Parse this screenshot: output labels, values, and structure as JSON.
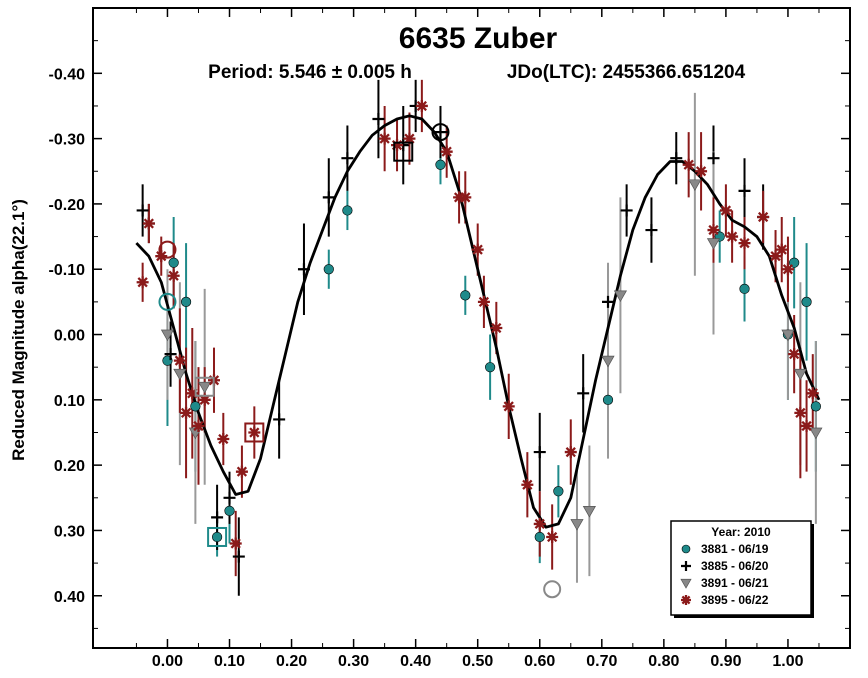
{
  "chart_data": {
    "type": "scatter",
    "title": "6635 Zuber",
    "subtitle_period": "Period: 5.546 ± 0.005 h",
    "subtitle_epoch": "JDo(LTC): 2455366.651204",
    "xlabel": "",
    "ylabel": "Reduced Magnitude alpha(22.1°)",
    "xlim": [
      -0.12,
      1.1
    ],
    "ylim": [
      0.48,
      -0.5
    ],
    "y_inverted": true,
    "x_ticks": [
      "0.00",
      "0.10",
      "0.20",
      "0.30",
      "0.40",
      "0.50",
      "0.60",
      "0.70",
      "0.80",
      "0.90",
      "1.00"
    ],
    "y_ticks": [
      "-0.40",
      "-0.30",
      "-0.20",
      "-0.10",
      "0.00",
      "0.10",
      "0.20",
      "0.30",
      "0.40"
    ],
    "grid": false,
    "legend_title": "Year: 2010",
    "legend_position": "bottom-right",
    "series": [
      {
        "name": "3881 - 06/19",
        "marker": "circle",
        "color": "#1f8a8a",
        "points": [
          [
            0.0,
            0.04,
            0.1
          ],
          [
            0.01,
            -0.11,
            0.07
          ],
          [
            0.03,
            -0.05,
            0.09
          ],
          [
            0.045,
            0.11,
            0.1
          ],
          [
            0.08,
            0.31,
            0.03
          ],
          [
            0.1,
            0.27,
            0.05
          ],
          [
            0.26,
            -0.1,
            0.03
          ],
          [
            0.29,
            -0.19,
            0.03
          ],
          [
            0.44,
            -0.26,
            0.03
          ],
          [
            0.48,
            -0.06,
            0.03
          ],
          [
            0.52,
            0.05,
            0.05
          ],
          [
            0.6,
            0.31,
            0.04
          ],
          [
            0.63,
            0.24,
            0.04
          ],
          [
            0.71,
            0.1,
            0.03
          ],
          [
            0.89,
            -0.15,
            0.04
          ],
          [
            0.93,
            -0.07,
            0.05
          ],
          [
            1.0,
            0.0,
            0.1
          ],
          [
            1.01,
            -0.11,
            0.07
          ],
          [
            1.03,
            -0.05,
            0.09
          ],
          [
            1.045,
            0.11,
            0.1
          ]
        ]
      },
      {
        "name": "3885 - 06/20",
        "marker": "cross",
        "color": "#000000",
        "points": [
          [
            -0.04,
            -0.19,
            0.04
          ],
          [
            -0.03,
            -0.17,
            0.03
          ],
          [
            0.005,
            0.03,
            0.05
          ],
          [
            0.08,
            0.28,
            0.05
          ],
          [
            0.1,
            0.25,
            0.04
          ],
          [
            0.115,
            0.34,
            0.06
          ],
          [
            0.18,
            0.13,
            0.06
          ],
          [
            0.22,
            -0.1,
            0.07
          ],
          [
            0.26,
            -0.21,
            0.06
          ],
          [
            0.29,
            -0.27,
            0.05
          ],
          [
            0.34,
            -0.33,
            0.06
          ],
          [
            0.38,
            -0.29,
            0.06
          ],
          [
            0.4,
            -0.35,
            0.04
          ],
          [
            0.44,
            -0.31,
            0.04
          ],
          [
            0.6,
            0.18,
            0.06
          ],
          [
            0.67,
            0.09,
            0.06
          ],
          [
            0.71,
            -0.05,
            0.05
          ],
          [
            0.74,
            -0.19,
            0.04
          ],
          [
            0.78,
            -0.16,
            0.05
          ],
          [
            0.82,
            -0.27,
            0.04
          ],
          [
            0.88,
            -0.27,
            0.05
          ],
          [
            0.93,
            -0.22,
            0.05
          ],
          [
            0.96,
            -0.18,
            0.05
          ]
        ]
      },
      {
        "name": "3891 - 06/21",
        "marker": "triangle",
        "color": "#888888",
        "points": [
          [
            0.0,
            0.0,
            0.1
          ],
          [
            0.02,
            0.06,
            0.14
          ],
          [
            0.045,
            0.15,
            0.14
          ],
          [
            0.06,
            0.08,
            0.15
          ],
          [
            0.66,
            0.29,
            0.09
          ],
          [
            0.68,
            0.27,
            0.1
          ],
          [
            0.71,
            0.04,
            0.15
          ],
          [
            0.73,
            -0.06,
            0.15
          ],
          [
            0.85,
            -0.23,
            0.14
          ],
          [
            0.88,
            -0.14,
            0.14
          ],
          [
            1.0,
            0.0,
            0.1
          ],
          [
            1.02,
            0.06,
            0.14
          ],
          [
            1.045,
            0.15,
            0.14
          ]
        ]
      },
      {
        "name": "3895 - 06/22",
        "marker": "star",
        "color": "#8b1a1a",
        "points": [
          [
            -0.04,
            -0.08,
            0.03
          ],
          [
            -0.03,
            -0.17,
            0.03
          ],
          [
            -0.01,
            -0.12,
            0.03
          ],
          [
            0.01,
            -0.09,
            0.05
          ],
          [
            0.02,
            0.04,
            0.08
          ],
          [
            0.03,
            0.12,
            0.1
          ],
          [
            0.04,
            0.09,
            0.1
          ],
          [
            0.05,
            0.14,
            0.09
          ],
          [
            0.06,
            0.1,
            0.05
          ],
          [
            0.075,
            0.07,
            0.05
          ],
          [
            0.09,
            0.16,
            0.04
          ],
          [
            0.11,
            0.32,
            0.05
          ],
          [
            0.12,
            0.21,
            0.04
          ],
          [
            0.14,
            0.15,
            0.04
          ],
          [
            0.35,
            -0.3,
            0.05
          ],
          [
            0.37,
            -0.29,
            0.04
          ],
          [
            0.39,
            -0.3,
            0.04
          ],
          [
            0.41,
            -0.35,
            0.04
          ],
          [
            0.45,
            -0.28,
            0.04
          ],
          [
            0.47,
            -0.21,
            0.04
          ],
          [
            0.48,
            -0.21,
            0.04
          ],
          [
            0.5,
            -0.13,
            0.04
          ],
          [
            0.51,
            -0.05,
            0.04
          ],
          [
            0.53,
            -0.01,
            0.04
          ],
          [
            0.55,
            0.11,
            0.05
          ],
          [
            0.58,
            0.23,
            0.05
          ],
          [
            0.6,
            0.29,
            0.05
          ],
          [
            0.62,
            0.31,
            0.05
          ],
          [
            0.65,
            0.18,
            0.05
          ],
          [
            0.84,
            -0.26,
            0.05
          ],
          [
            0.86,
            -0.25,
            0.06
          ],
          [
            0.88,
            -0.16,
            0.05
          ],
          [
            0.9,
            -0.19,
            0.04
          ],
          [
            0.91,
            -0.15,
            0.04
          ],
          [
            0.93,
            -0.14,
            0.04
          ],
          [
            0.96,
            -0.18,
            0.04
          ],
          [
            0.98,
            -0.12,
            0.04
          ],
          [
            0.99,
            -0.13,
            0.05
          ],
          [
            1.0,
            -0.1,
            0.05
          ],
          [
            1.01,
            0.03,
            0.06
          ],
          [
            1.02,
            0.12,
            0.1
          ],
          [
            1.03,
            0.14,
            0.07
          ],
          [
            1.04,
            0.09,
            0.06
          ]
        ]
      }
    ],
    "highlighted": [
      {
        "series": "3881 - 06/19",
        "marker": "circle",
        "x": 0.0,
        "y": -0.05
      },
      {
        "series": "3881 - 06/19",
        "marker": "square",
        "x": 0.08,
        "y": 0.31
      },
      {
        "series": "3885 - 06/20",
        "marker": "cross-circle",
        "x": 0.44,
        "y": -0.31
      },
      {
        "series": "3885 - 06/20",
        "marker": "square",
        "x": 0.38,
        "y": -0.28
      },
      {
        "series": "3891 - 06/21",
        "marker": "square",
        "x": 0.06,
        "y": 0.08
      },
      {
        "series": "3891 - 06/21",
        "marker": "circle",
        "x": 0.62,
        "y": 0.39
      },
      {
        "series": "3895 - 06/22",
        "marker": "circle",
        "x": 0.0,
        "y": -0.13
      },
      {
        "series": "3895 - 06/22",
        "marker": "square",
        "x": 0.14,
        "y": 0.15
      }
    ],
    "fit_curve": {
      "color": "#000000",
      "points": [
        [
          -0.05,
          -0.14
        ],
        [
          -0.03,
          -0.12
        ],
        [
          -0.01,
          -0.08
        ],
        [
          0.01,
          -0.01
        ],
        [
          0.03,
          0.06
        ],
        [
          0.05,
          0.12
        ],
        [
          0.07,
          0.17
        ],
        [
          0.09,
          0.21
        ],
        [
          0.11,
          0.245
        ],
        [
          0.13,
          0.24
        ],
        [
          0.15,
          0.19
        ],
        [
          0.17,
          0.11
        ],
        [
          0.19,
          0.03
        ],
        [
          0.21,
          -0.05
        ],
        [
          0.23,
          -0.11
        ],
        [
          0.25,
          -0.16
        ],
        [
          0.27,
          -0.21
        ],
        [
          0.29,
          -0.25
        ],
        [
          0.31,
          -0.28
        ],
        [
          0.33,
          -0.305
        ],
        [
          0.35,
          -0.32
        ],
        [
          0.37,
          -0.33
        ],
        [
          0.39,
          -0.335
        ],
        [
          0.41,
          -0.33
        ],
        [
          0.43,
          -0.31
        ],
        [
          0.45,
          -0.28
        ],
        [
          0.47,
          -0.22
        ],
        [
          0.49,
          -0.14
        ],
        [
          0.51,
          -0.06
        ],
        [
          0.53,
          0.02
        ],
        [
          0.55,
          0.11
        ],
        [
          0.57,
          0.19
        ],
        [
          0.59,
          0.265
        ],
        [
          0.61,
          0.295
        ],
        [
          0.63,
          0.29
        ],
        [
          0.65,
          0.25
        ],
        [
          0.67,
          0.16
        ],
        [
          0.69,
          0.07
        ],
        [
          0.71,
          -0.01
        ],
        [
          0.73,
          -0.09
        ],
        [
          0.75,
          -0.16
        ],
        [
          0.77,
          -0.21
        ],
        [
          0.79,
          -0.245
        ],
        [
          0.81,
          -0.265
        ],
        [
          0.83,
          -0.265
        ],
        [
          0.85,
          -0.25
        ],
        [
          0.87,
          -0.23
        ],
        [
          0.89,
          -0.2
        ],
        [
          0.91,
          -0.175
        ],
        [
          0.93,
          -0.165
        ],
        [
          0.95,
          -0.15
        ],
        [
          0.97,
          -0.12
        ],
        [
          0.99,
          -0.06
        ],
        [
          1.01,
          -0.01
        ],
        [
          1.03,
          0.06
        ],
        [
          1.05,
          0.1
        ]
      ]
    }
  }
}
